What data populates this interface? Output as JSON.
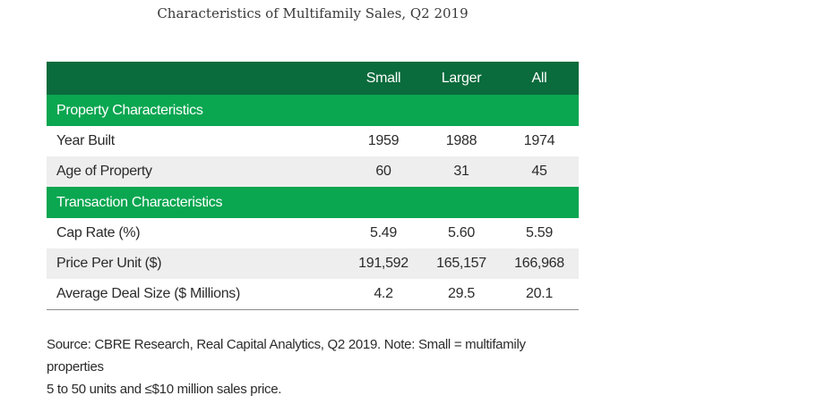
{
  "title": "Characteristics of Multifamily Sales, Q2 2019",
  "table": {
    "columns": [
      "Small",
      "Larger",
      "All"
    ],
    "sections": [
      {
        "label": "Property Characteristics",
        "rows": [
          {
            "label": "Year Built",
            "values": [
              "1959",
              "1988",
              "1974"
            ]
          },
          {
            "label": "Age of Property",
            "values": [
              "60",
              "31",
              "45"
            ]
          }
        ]
      },
      {
        "label": "Transaction Characteristics",
        "rows": [
          {
            "label": "Cap Rate (%)",
            "values": [
              "5.49",
              "5.60",
              "5.59"
            ]
          },
          {
            "label": "Price Per Unit ($)",
            "values": [
              "191,592",
              "165,157",
              "166,968"
            ]
          },
          {
            "label": "Average Deal Size ($ Millions)",
            "values": [
              "4.2",
              "29.5",
              "20.1"
            ]
          }
        ]
      }
    ]
  },
  "source": {
    "line1": "Source: CBRE Research, Real Capital Analytics, Q2 2019. Note: Small = multifamily properties",
    "line2": "5 to 50 units and ≤$10 million sales price."
  }
}
